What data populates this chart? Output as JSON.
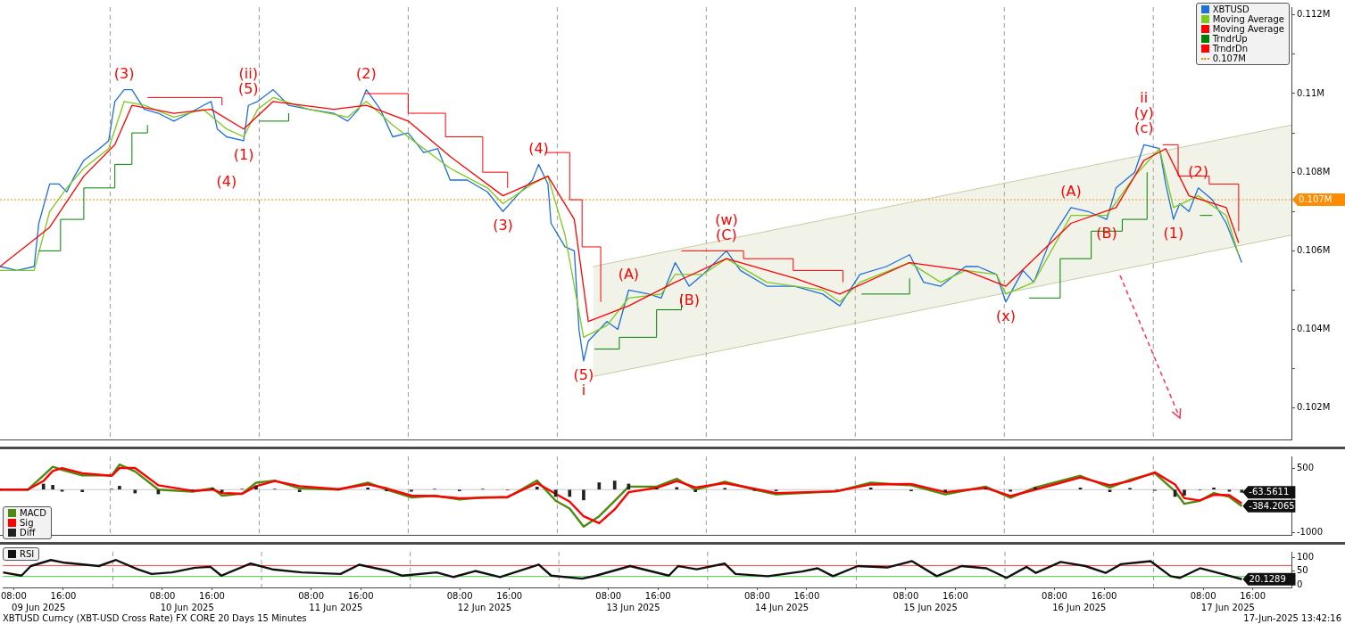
{
  "chart_data": [
    {
      "type": "line",
      "legend": "top right",
      "tick_labels": "y",
      "xlim": [
        "2025-06-09T06:15",
        "2025-06-17T22:15"
      ],
      "ylim": [
        0.1012,
        0.1122
      ],
      "yticks": [
        {
          "value": 0.102,
          "label": "0.102M"
        },
        {
          "value": 0.103,
          "label": null
        },
        {
          "value": 0.104,
          "label": "0.104M"
        },
        {
          "value": 0.105,
          "label": null
        },
        {
          "value": 0.106,
          "label": "0.106M"
        },
        {
          "value": 0.107,
          "label": null
        },
        {
          "value": 0.108,
          "label": "0.108M"
        },
        {
          "value": 0.109,
          "label": null
        },
        {
          "value": 0.11,
          "label": "0.11M"
        },
        {
          "value": 0.111,
          "label": null
        },
        {
          "value": 0.112,
          "label": "0.112M"
        }
      ],
      "series": [
        {
          "name": "XBTUSD",
          "color": "#1e6fd9",
          "x": [
            "2025-06-09T06:15",
            "2025-06-09T09:00",
            "2025-06-09T11:45",
            "2025-06-09T12:30",
            "2025-06-09T14:15",
            "2025-06-09T15:45",
            "2025-06-09T17:00",
            "2025-06-09T18:15",
            "2025-06-09T19:45",
            "2025-06-09T22:15",
            "2025-06-09T23:45",
            "2025-06-10T00:45",
            "2025-06-10T02:15",
            "2025-06-10T03:30",
            "2025-06-10T05:30",
            "2025-06-10T07:45",
            "2025-06-10T10:15",
            "2025-06-10T12:45",
            "2025-06-10T15:00",
            "2025-06-10T16:15",
            "2025-06-10T17:15",
            "2025-06-10T18:45",
            "2025-06-10T21:30",
            "2025-06-10T22:15",
            "2025-06-10T23:45",
            "2025-06-11T02:15",
            "2025-06-11T04:45",
            "2025-06-11T08:00",
            "2025-06-11T12:00",
            "2025-06-11T14:15",
            "2025-06-11T16:00",
            "2025-06-11T17:15",
            "2025-06-11T19:30",
            "2025-06-11T21:30",
            "2025-06-12T00:00",
            "2025-06-12T02:30",
            "2025-06-12T04:45",
            "2025-06-12T06:45",
            "2025-06-12T09:30",
            "2025-06-12T12:45",
            "2025-06-12T15:15",
            "2025-06-12T17:30",
            "2025-06-12T20:00",
            "2025-06-12T21:00",
            "2025-06-12T22:30",
            "2025-06-12T23:00",
            "2025-06-13T01:15",
            "2025-06-13T02:45",
            "2025-06-13T03:30",
            "2025-06-13T04:15",
            "2025-06-13T05:00",
            "2025-06-13T08:00",
            "2025-06-13T09:45",
            "2025-06-13T11:30",
            "2025-06-13T14:45",
            "2025-06-13T16:45",
            "2025-06-13T19:00",
            "2025-06-13T21:15",
            "2025-06-13T23:30",
            "2025-06-14T03:15",
            "2025-06-14T05:30",
            "2025-06-14T09:45",
            "2025-06-14T14:15",
            "2025-06-14T18:45",
            "2025-06-14T21:30",
            "2025-06-15T00:45",
            "2025-06-15T05:00",
            "2025-06-15T08:45",
            "2025-06-15T11:00",
            "2025-06-15T13:45",
            "2025-06-15T17:45",
            "2025-06-15T19:45",
            "2025-06-15T22:45",
            "2025-06-16T00:15",
            "2025-06-16T03:00",
            "2025-06-16T04:45",
            "2025-06-16T07:30",
            "2025-06-16T10:45",
            "2025-06-16T13:30",
            "2025-06-16T16:30",
            "2025-06-16T18:00",
            "2025-06-16T21:00",
            "2025-06-16T22:30",
            "2025-06-17T01:00",
            "2025-06-17T02:00",
            "2025-06-17T03:15",
            "2025-06-17T04:15",
            "2025-06-17T05:45",
            "2025-06-17T07:15",
            "2025-06-17T09:30",
            "2025-06-17T11:45",
            "2025-06-17T14:15"
          ],
          "values": [
            0.1056,
            0.1055,
            0.1056,
            0.1067,
            0.1077,
            0.1077,
            0.1075,
            0.1079,
            0.1083,
            0.1086,
            0.1088,
            0.1098,
            0.1101,
            0.1101,
            0.1096,
            0.1095,
            0.1093,
            0.1095,
            0.1097,
            0.1098,
            0.1091,
            0.1089,
            0.1088,
            0.1097,
            0.1098,
            0.1101,
            0.1097,
            0.1096,
            0.1095,
            0.1093,
            0.1096,
            0.1101,
            0.1096,
            0.1089,
            0.109,
            0.1085,
            0.1086,
            0.1078,
            0.1078,
            0.1075,
            0.107,
            0.1074,
            0.1078,
            0.1082,
            0.1077,
            0.1067,
            0.1061,
            0.106,
            0.104,
            0.1032,
            0.1037,
            0.1042,
            0.104,
            0.105,
            0.1049,
            0.1048,
            0.1057,
            0.1051,
            0.1054,
            0.106,
            0.1055,
            0.1051,
            0.1051,
            0.1049,
            0.1046,
            0.1054,
            0.1056,
            0.1059,
            0.1052,
            0.1051,
            0.1056,
            0.1056,
            0.1054,
            0.1047,
            0.1055,
            0.1052,
            0.1063,
            0.1071,
            0.107,
            0.1068,
            0.1076,
            0.108,
            0.1087,
            0.1086,
            0.1077,
            0.1068,
            0.1072,
            0.107,
            0.1076,
            0.1073,
            0.1067,
            0.1057
          ]
        },
        {
          "name": "Moving Average",
          "color": "#7dc91e",
          "x": [
            "2025-06-09T06:15",
            "2025-06-09T11:45",
            "2025-06-09T14:15",
            "2025-06-09T17:00",
            "2025-06-09T19:45",
            "2025-06-09T23:45",
            "2025-06-10T02:15",
            "2025-06-10T05:30",
            "2025-06-10T10:15",
            "2025-06-10T15:00",
            "2025-06-10T18:45",
            "2025-06-10T21:30",
            "2025-06-10T23:45",
            "2025-06-11T02:15",
            "2025-06-11T08:00",
            "2025-06-11T14:15",
            "2025-06-11T17:15",
            "2025-06-11T21:30",
            "2025-06-12T02:30",
            "2025-06-12T06:45",
            "2025-06-12T12:45",
            "2025-06-12T15:15",
            "2025-06-12T20:00",
            "2025-06-12T22:30",
            "2025-06-13T01:15",
            "2025-06-13T04:15",
            "2025-06-13T08:00",
            "2025-06-13T11:30",
            "2025-06-13T16:45",
            "2025-06-13T19:00",
            "2025-06-13T23:30",
            "2025-06-14T03:15",
            "2025-06-14T09:45",
            "2025-06-14T18:45",
            "2025-06-14T21:30",
            "2025-06-15T00:45",
            "2025-06-15T08:45",
            "2025-06-15T13:45",
            "2025-06-15T17:45",
            "2025-06-15T22:45",
            "2025-06-16T00:15",
            "2025-06-16T04:45",
            "2025-06-16T10:45",
            "2025-06-16T16:30",
            "2025-06-16T21:00",
            "2025-06-17T01:00",
            "2025-06-17T03:15",
            "2025-06-17T07:15",
            "2025-06-17T11:45",
            "2025-06-17T13:45"
          ],
          "values": [
            0.1055,
            0.1055,
            0.107,
            0.1076,
            0.1081,
            0.1086,
            0.1098,
            0.1097,
            0.1094,
            0.1096,
            0.1091,
            0.1089,
            0.1096,
            0.1099,
            0.1096,
            0.1094,
            0.1098,
            0.1092,
            0.1086,
            0.1081,
            0.1076,
            0.1072,
            0.1077,
            0.1079,
            0.1064,
            0.1038,
            0.1041,
            0.1048,
            0.1049,
            0.1054,
            0.1054,
            0.1058,
            0.1052,
            0.105,
            0.1047,
            0.1052,
            0.1057,
            0.1052,
            0.1055,
            0.1054,
            0.1049,
            0.1052,
            0.1069,
            0.1069,
            0.1079,
            0.1086,
            0.1071,
            0.1074,
            0.1069,
            0.1059
          ]
        },
        {
          "name": "Moving Average",
          "color": "#ff0000",
          "x": [
            "2025-06-09T06:15",
            "2025-06-09T14:15",
            "2025-06-09T19:45",
            "2025-06-10T00:45",
            "2025-06-10T03:30",
            "2025-06-10T10:15",
            "2025-06-10T16:15",
            "2025-06-10T21:30",
            "2025-06-11T02:15",
            "2025-06-11T12:00",
            "2025-06-11T17:15",
            "2025-06-12T00:00",
            "2025-06-12T06:45",
            "2025-06-12T15:15",
            "2025-06-12T22:30",
            "2025-06-13T02:45",
            "2025-06-13T05:00",
            "2025-06-13T11:30",
            "2025-06-13T19:00",
            "2025-06-14T03:15",
            "2025-06-14T14:15",
            "2025-06-14T21:30",
            "2025-06-15T08:45",
            "2025-06-15T17:45",
            "2025-06-16T00:15",
            "2025-06-16T10:45",
            "2025-06-16T18:00",
            "2025-06-16T22:30",
            "2025-06-17T02:00",
            "2025-06-17T05:45",
            "2025-06-17T11:45",
            "2025-06-17T13:45"
          ],
          "values": [
            0.1056,
            0.1066,
            0.1079,
            0.1087,
            0.1097,
            0.1095,
            0.1096,
            0.1091,
            0.1098,
            0.1096,
            0.1097,
            0.1093,
            0.1084,
            0.1074,
            0.1079,
            0.1068,
            0.1042,
            0.1046,
            0.1052,
            0.1058,
            0.1053,
            0.1049,
            0.1057,
            0.1055,
            0.1051,
            0.1067,
            0.1071,
            0.1083,
            0.1086,
            0.1074,
            0.1071,
            0.1062
          ]
        },
        {
          "name": "TrndrUp",
          "type": "step",
          "color": "#008000",
          "x": [
            "2025-06-09T12:30",
            "2025-06-09T16:00",
            "2025-06-09T19:45",
            "2025-06-10T00:45",
            "2025-06-10T03:30",
            "2025-06-10T06:00",
            "2025-06-10T12:00",
            "2025-06-11T00:00",
            "2025-06-11T04:45",
            "2025-06-11T10:00",
            "2025-06-13T06:00",
            "2025-06-13T10:00",
            "2025-06-13T16:00",
            "2025-06-13T20:00",
            "2025-06-14T06:00",
            "2025-06-15T01:00",
            "2025-06-15T08:45",
            "2025-06-15T14:00",
            "2025-06-16T04:00",
            "2025-06-16T09:00",
            "2025-06-16T14:00",
            "2025-06-16T19:00",
            "2025-06-16T23:00",
            "2025-06-17T04:00",
            "2025-06-17T07:30",
            "2025-06-17T09:30"
          ],
          "values": [
            0.106,
            0.1068,
            0.1076,
            0.1082,
            0.109,
            0.1092,
            null,
            0.1093,
            0.1095,
            null,
            0.1035,
            0.1038,
            0.1045,
            0.1049,
            null,
            0.1049,
            0.1053,
            null,
            0.1048,
            0.1058,
            0.1065,
            0.1068,
            0.108,
            null,
            0.1069,
            0.1069
          ]
        },
        {
          "name": "TrndrDn",
          "type": "step",
          "color": "#ff0000",
          "x": [
            "2025-06-10T06:00",
            "2025-06-10T18:00",
            "2025-06-11T06:00",
            "2025-06-11T17:00",
            "2025-06-12T00:00",
            "2025-06-12T06:00",
            "2025-06-12T12:00",
            "2025-06-12T16:00",
            "2025-06-12T19:00",
            "2025-06-12T22:00",
            "2025-06-13T02:00",
            "2025-06-13T04:00",
            "2025-06-13T07:00",
            "2025-06-13T12:00",
            "2025-06-13T20:00",
            "2025-06-14T06:00",
            "2025-06-14T14:00",
            "2025-06-14T22:00",
            "2025-06-15T06:00",
            "2025-06-17T01:30",
            "2025-06-17T04:00",
            "2025-06-17T09:00",
            "2025-06-17T13:45"
          ],
          "values": [
            0.1099,
            0.1097,
            null,
            0.11,
            0.1095,
            0.1089,
            0.108,
            0.1076,
            null,
            0.1085,
            0.1073,
            0.1061,
            0.1047,
            null,
            0.106,
            0.1058,
            0.1055,
            0.1052,
            null,
            0.1087,
            0.1079,
            0.1077,
            0.1065
          ]
        },
        {
          "type": "line",
          "color": "#c9cba3",
          "x": [
            "2025-06-13T05:45",
            "2025-06-17T22:15"
          ],
          "values": [
            0.1028,
            0.1064
          ]
        },
        {
          "type": "area",
          "color": "#c9cba3",
          "x": [
            "2025-06-13T05:45",
            "2025-06-17T22:15"
          ],
          "values": [
            0.1056,
            0.1092
          ]
        }
      ],
      "ref_lines": [
        {
          "axis": "x",
          "value": "2025-06-10T00:00",
          "color": "#9a9a9a",
          "line_style": "dashed"
        },
        {
          "axis": "x",
          "value": "2025-06-11T00:00",
          "color": "#9a9a9a",
          "line_style": "dashed"
        },
        {
          "axis": "x",
          "value": "2025-06-12T00:00",
          "color": "#9a9a9a",
          "line_style": "dashed"
        },
        {
          "axis": "x",
          "value": "2025-06-13T00:00",
          "color": "#9a9a9a",
          "line_style": "dashed"
        },
        {
          "axis": "x",
          "value": "2025-06-14T00:00",
          "color": "#9a9a9a",
          "line_style": "dashed"
        },
        {
          "axis": "x",
          "value": "2025-06-15T00:00",
          "color": "#9a9a9a",
          "line_style": "dashed"
        },
        {
          "axis": "x",
          "value": "2025-06-16T00:00",
          "color": "#9a9a9a",
          "line_style": "dashed"
        },
        {
          "axis": "x",
          "value": "2025-06-17T00:00",
          "color": "#9a9a9a",
          "line_style": "dashed"
        },
        {
          "axis": "y",
          "value": 0.1073,
          "label": "0.107M",
          "color": "#ff8c00",
          "line_style": "dotted"
        }
      ],
      "annotations": [
        {
          "text": "(3)",
          "x": "2025-06-10T02:15",
          "y": 0.1101
        },
        {
          "text": "(5)",
          "x": "2025-06-10T22:15",
          "y": 0.1097
        },
        {
          "text": "(ii)",
          "x": "2025-06-10T22:15",
          "y": 0.1097
        },
        {
          "text": "(2)",
          "x": "2025-06-11T17:15",
          "y": 0.1101
        },
        {
          "text": "(1)",
          "x": "2025-06-10T21:30",
          "y": 0.1088
        },
        {
          "text": "(4)",
          "x": "2025-06-10T18:45",
          "y": 0.1089
        },
        {
          "text": "(4)",
          "x": "2025-06-12T21:00",
          "y": 0.1082
        },
        {
          "text": "(3)",
          "x": "2025-06-12T15:15",
          "y": 0.107
        },
        {
          "text": "(5)",
          "x": "2025-06-13T04:15",
          "y": 0.1032
        },
        {
          "text": "i",
          "x": "2025-06-13T04:15",
          "y": 0.1032
        },
        {
          "text": "(C)",
          "x": "2025-06-14T03:15",
          "y": 0.106
        },
        {
          "text": "(w)",
          "x": "2025-06-14T03:15",
          "y": 0.106
        },
        {
          "text": "(A)",
          "x": "2025-06-13T11:30",
          "y": 0.105
        },
        {
          "text": "(B)",
          "x": "2025-06-13T21:15",
          "y": 0.1051
        },
        {
          "text": "(A)",
          "x": "2025-06-16T10:45",
          "y": 0.1071
        },
        {
          "text": "(B)",
          "x": "2025-06-16T16:30",
          "y": 0.1068
        },
        {
          "text": "(x)",
          "x": "2025-06-16T00:15",
          "y": 0.1047
        },
        {
          "text": "(c)",
          "x": "2025-06-16T22:30",
          "y": 0.1087
        },
        {
          "text": "(y)",
          "x": "2025-06-16T22:30",
          "y": 0.1087
        },
        {
          "text": "ii",
          "x": "2025-06-16T22:30",
          "y": 0.1087
        },
        {
          "text": "(2)",
          "x": "2025-06-17T07:15",
          "y": 0.1076
        },
        {
          "text": "(1)",
          "x": "2025-06-17T03:15",
          "y": 0.1068
        }
      ]
    },
    {
      "type": "line",
      "legend": "bottom left",
      "tick_labels": "y",
      "x": [
        "2025-06-09T06:15",
        "2025-06-09T10:45",
        "2025-06-09T13:15",
        "2025-06-09T14:45",
        "2025-06-09T16:15",
        "2025-06-09T19:30",
        "2025-06-10T00:15",
        "2025-06-10T01:30",
        "2025-06-10T04:00",
        "2025-06-10T07:45",
        "2025-06-10T13:15",
        "2025-06-10T16:30",
        "2025-06-10T18:00",
        "2025-06-10T21:15",
        "2025-06-10T23:30",
        "2025-06-11T02:30",
        "2025-06-11T06:30",
        "2025-06-11T12:45",
        "2025-06-11T17:30",
        "2025-06-11T20:30",
        "2025-06-12T00:30",
        "2025-06-12T04:15",
        "2025-06-12T08:15",
        "2025-06-12T12:00",
        "2025-06-12T16:00",
        "2025-06-12T20:45",
        "2025-06-12T23:45",
        "2025-06-13T02:00",
        "2025-06-13T04:15",
        "2025-06-13T06:45",
        "2025-06-13T09:15",
        "2025-06-13T11:30",
        "2025-06-13T16:00",
        "2025-06-13T19:15",
        "2025-06-13T22:15",
        "2025-06-14T03:00",
        "2025-06-14T07:45",
        "2025-06-14T11:15",
        "2025-06-14T21:00",
        "2025-06-15T02:30",
        "2025-06-15T09:00",
        "2025-06-15T14:30",
        "2025-06-15T21:00",
        "2025-06-16T01:00",
        "2025-06-16T05:00",
        "2025-06-16T12:15",
        "2025-06-16T17:00",
        "2025-06-16T20:15",
        "2025-06-17T00:15",
        "2025-06-17T03:30",
        "2025-06-17T05:00",
        "2025-06-17T07:30",
        "2025-06-17T09:45",
        "2025-06-17T12:15",
        "2025-06-17T14:15"
      ],
      "xlim": [
        "2025-06-09T06:15",
        "2025-06-17T22:15"
      ],
      "ylim": [
        -1050,
        770
      ],
      "yticks": [
        {
          "value": -1000,
          "label": "-1000"
        },
        {
          "value": -500,
          "label": null
        },
        {
          "value": 0,
          "label": null
        },
        {
          "value": 500,
          "label": "500"
        }
      ],
      "series": [
        {
          "name": "MACD",
          "color": "#4f8a10",
          "values": [
            0,
            0,
            330,
            530,
            460,
            330,
            330,
            580,
            420,
            0,
            -50,
            30,
            -140,
            -90,
            160,
            210,
            30,
            0,
            160,
            0,
            -180,
            -140,
            -230,
            -180,
            -180,
            210,
            -260,
            -440,
            -860,
            -620,
            -260,
            70,
            70,
            250,
            0,
            180,
            0,
            -110,
            -40,
            160,
            100,
            -110,
            70,
            -190,
            50,
            320,
            50,
            230,
            380,
            -40,
            -330,
            -260,
            -80,
            -170,
            -384.2065
          ]
        },
        {
          "name": "Sig",
          "color": "#ff0000",
          "values": [
            0,
            0,
            200,
            430,
            500,
            380,
            320,
            500,
            500,
            100,
            -30,
            0,
            -80,
            -100,
            80,
            200,
            80,
            10,
            120,
            30,
            -140,
            -150,
            -200,
            -190,
            -170,
            150,
            -100,
            -280,
            -620,
            -780,
            -460,
            -60,
            40,
            200,
            50,
            150,
            20,
            -80,
            -40,
            120,
            130,
            -60,
            40,
            -150,
            0,
            280,
            100,
            200,
            400,
            120,
            -200,
            -250,
            -120,
            -130,
            -320
          ]
        },
        {
          "name": "Diff",
          "type": "bar",
          "color": "#222222",
          "values": [
            0,
            0,
            130,
            100,
            -40,
            -50,
            10,
            80,
            -80,
            -100,
            -20,
            30,
            -60,
            10,
            80,
            10,
            -50,
            -10,
            40,
            -30,
            -40,
            10,
            -30,
            10,
            -10,
            60,
            -160,
            -160,
            -240,
            160,
            200,
            130,
            30,
            50,
            -50,
            30,
            -20,
            -30,
            0,
            40,
            -30,
            -50,
            30,
            -40,
            50,
            40,
            -50,
            30,
            -20,
            -160,
            -130,
            -10,
            40,
            -40,
            -63.5611
          ]
        }
      ],
      "ref_lines": [
        {
          "axis": "x",
          "value": "2025-06-10T00:00",
          "color": "#9a9a9a",
          "line_style": "dashed"
        },
        {
          "axis": "x",
          "value": "2025-06-11T00:00",
          "color": "#9a9a9a",
          "line_style": "dashed"
        },
        {
          "axis": "x",
          "value": "2025-06-12T00:00",
          "color": "#9a9a9a",
          "line_style": "dashed"
        },
        {
          "axis": "x",
          "value": "2025-06-13T00:00",
          "color": "#9a9a9a",
          "line_style": "dashed"
        },
        {
          "axis": "x",
          "value": "2025-06-14T00:00",
          "color": "#9a9a9a",
          "line_style": "dashed"
        },
        {
          "axis": "x",
          "value": "2025-06-15T00:00",
          "color": "#9a9a9a",
          "line_style": "dashed"
        },
        {
          "axis": "x",
          "value": "2025-06-16T00:00",
          "color": "#9a9a9a",
          "line_style": "dashed"
        },
        {
          "axis": "x",
          "value": "2025-06-17T00:00",
          "color": "#9a9a9a",
          "line_style": "dashed"
        },
        {
          "axis": "y",
          "value": 0,
          "color": "#c8c8c8"
        }
      ],
      "annotations": [
        {
          "text": "-63.5611",
          "x": "2025-06-17T14:15",
          "y": -63.5611
        },
        {
          "text": "-384.2065",
          "x": "2025-06-17T14:15",
          "y": -384.2065
        }
      ]
    },
    {
      "type": "line",
      "legend": "top left",
      "x": [
        "2025-06-09T06:15",
        "2025-06-09T09:15",
        "2025-06-09T10:45",
        "2025-06-09T14:00",
        "2025-06-09T16:15",
        "2025-06-09T21:45",
        "2025-06-10T00:30",
        "2025-06-10T04:00",
        "2025-06-10T06:15",
        "2025-06-10T09:30",
        "2025-06-10T13:15",
        "2025-06-10T15:45",
        "2025-06-10T17:30",
        "2025-06-10T22:15",
        "2025-06-11T01:45",
        "2025-06-11T06:30",
        "2025-06-11T12:45",
        "2025-06-11T15:45",
        "2025-06-11T20:30",
        "2025-06-11T22:45",
        "2025-06-12T04:15",
        "2025-06-12T07:00",
        "2025-06-12T10:30",
        "2025-06-12T14:30",
        "2025-06-12T20:45",
        "2025-06-12T22:45",
        "2025-06-13T03:45",
        "2025-06-13T06:00",
        "2025-06-13T11:30",
        "2025-06-13T17:45",
        "2025-06-13T19:15",
        "2025-06-13T22:15",
        "2025-06-14T02:45",
        "2025-06-14T04:30",
        "2025-06-14T09:45",
        "2025-06-14T15:15",
        "2025-06-14T17:45",
        "2025-06-14T20:15",
        "2025-06-15T00:15",
        "2025-06-15T05:00",
        "2025-06-15T09:00",
        "2025-06-15T13:00",
        "2025-06-15T17:00",
        "2025-06-15T21:00",
        "2025-06-16T00:15",
        "2025-06-16T03:30",
        "2025-06-16T05:00",
        "2025-06-16T09:00",
        "2025-06-16T13:00",
        "2025-06-16T16:15",
        "2025-06-16T18:45",
        "2025-06-16T23:30",
        "2025-06-17T02:45",
        "2025-06-17T04:15",
        "2025-06-17T07:30",
        "2025-06-17T11:30",
        "2025-06-17T14:15"
      ],
      "xlim": [
        "2025-06-09T06:15",
        "2025-06-17T22:15"
      ],
      "xticks": [
        {
          "value": "2025-06-09T08:00",
          "label": "08:00"
        },
        {
          "value": "2025-06-09T16:00",
          "label": "16:00"
        },
        {
          "value": "2025-06-10T08:00",
          "label": "08:00"
        },
        {
          "value": "2025-06-10T16:00",
          "label": "16:00"
        },
        {
          "value": "2025-06-11T08:00",
          "label": "08:00"
        },
        {
          "value": "2025-06-11T16:00",
          "label": "16:00"
        },
        {
          "value": "2025-06-12T08:00",
          "label": "08:00"
        },
        {
          "value": "2025-06-12T16:00",
          "label": "16:00"
        },
        {
          "value": "2025-06-13T08:00",
          "label": "08:00"
        },
        {
          "value": "2025-06-13T16:00",
          "label": "16:00"
        },
        {
          "value": "2025-06-14T08:00",
          "label": "08:00"
        },
        {
          "value": "2025-06-14T16:00",
          "label": "16:00"
        },
        {
          "value": "2025-06-15T08:00",
          "label": "08:00"
        },
        {
          "value": "2025-06-15T16:00",
          "label": "16:00"
        },
        {
          "value": "2025-06-16T08:00",
          "label": "08:00"
        },
        {
          "value": "2025-06-16T16:00",
          "label": "16:00"
        },
        {
          "value": "2025-06-17T08:00",
          "label": "08:00"
        },
        {
          "value": "2025-06-17T16:00",
          "label": "16:00"
        }
      ],
      "x2lim": [
        "2025-06-09T06:15",
        "2025-06-17T22:15"
      ],
      "x2ticks": [
        {
          "value": "2025-06-09T12:00",
          "label": "09 Jun 2025"
        },
        {
          "value": "2025-06-10T12:00",
          "label": "10 Jun 2025"
        },
        {
          "value": "2025-06-11T12:00",
          "label": "11 Jun 2025"
        },
        {
          "value": "2025-06-12T12:00",
          "label": "12 Jun 2025"
        },
        {
          "value": "2025-06-13T12:00",
          "label": "13 Jun 2025"
        },
        {
          "value": "2025-06-14T12:00",
          "label": "14 Jun 2025"
        },
        {
          "value": "2025-06-15T12:00",
          "label": "15 Jun 2025"
        },
        {
          "value": "2025-06-16T12:00",
          "label": "16 Jun 2025"
        },
        {
          "value": "2025-06-17T12:00",
          "label": "17 Jun 2025"
        }
      ],
      "ylim": [
        -10,
        120
      ],
      "yticks": [
        0,
        50,
        100
      ],
      "series": [
        {
          "name": "RSI",
          "color": "#111111",
          "values": [
            45,
            33,
            68,
            90,
            80,
            68,
            90,
            56,
            39,
            45,
            62,
            65,
            33,
            77,
            56,
            45,
            39,
            73,
            50,
            33,
            45,
            28,
            50,
            28,
            73,
            33,
            22,
            33,
            68,
            33,
            68,
            56,
            77,
            39,
            31,
            48,
            60,
            31,
            68,
            63,
            86,
            31,
            68,
            60,
            25,
            65,
            43,
            83,
            68,
            43,
            75,
            86,
            31,
            25,
            60,
            37,
            20.1289
          ]
        }
      ],
      "ref_lines": [
        {
          "axis": "x",
          "value": "2025-06-10T00:00",
          "color": "#9a9a9a",
          "line_style": "dashed"
        },
        {
          "axis": "x",
          "value": "2025-06-11T00:00",
          "color": "#9a9a9a",
          "line_style": "dashed"
        },
        {
          "axis": "x",
          "value": "2025-06-12T00:00",
          "color": "#9a9a9a",
          "line_style": "dashed"
        },
        {
          "axis": "x",
          "value": "2025-06-13T00:00",
          "color": "#9a9a9a",
          "line_style": "dashed"
        },
        {
          "axis": "x",
          "value": "2025-06-14T00:00",
          "color": "#9a9a9a",
          "line_style": "dashed"
        },
        {
          "axis": "x",
          "value": "2025-06-15T00:00",
          "color": "#9a9a9a",
          "line_style": "dashed"
        },
        {
          "axis": "x",
          "value": "2025-06-16T00:00",
          "color": "#9a9a9a",
          "line_style": "dashed"
        },
        {
          "axis": "x",
          "value": "2025-06-17T00:00",
          "color": "#9a9a9a",
          "line_style": "dashed"
        },
        {
          "axis": "y",
          "value": 70,
          "color": "#ff3b3b"
        },
        {
          "axis": "y",
          "value": 30,
          "color": "#44cc44"
        }
      ],
      "annotations": [
        {
          "text": "20.1289",
          "x": "2025-06-17T14:15",
          "y": 20.1289
        },
        "XBTUSD Curncy (XBT-USD Cross Rate) FX CORE 20 Days 15 Minutes",
        "17-Jun-2025 13:42:16"
      ]
    }
  ]
}
